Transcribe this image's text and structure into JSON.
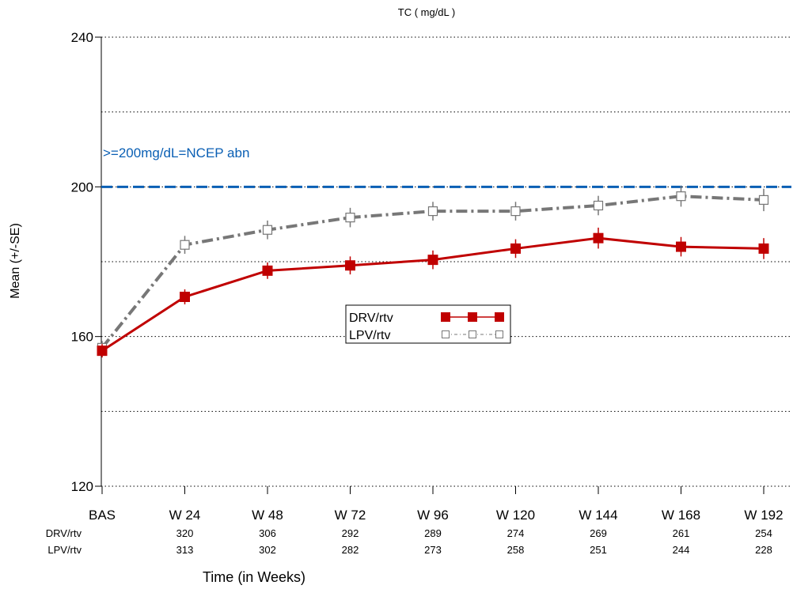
{
  "chart_data": {
    "type": "line",
    "title": "TC ( mg/dL )",
    "xlabel": "Time (in Weeks)",
    "ylabel": "Mean (+/-SE)",
    "ylim": [
      120,
      240
    ],
    "yticks": [
      120,
      160,
      200,
      240
    ],
    "ygrid": [
      120,
      140,
      160,
      180,
      200,
      220,
      240
    ],
    "grid": true,
    "legend_position": "center",
    "categories": [
      "BAS",
      "W 24",
      "W 48",
      "W 72",
      "W 96",
      "W 120",
      "W 144",
      "W 168",
      "W 192"
    ],
    "reference_line": {
      "y": 200,
      "label": ">=200mg/dL=NCEP abn",
      "color": "#0a5fb4"
    },
    "series": [
      {
        "name": "DRV/rtv",
        "color": "#c00000",
        "marker": "filled-square",
        "values": [
          156.2,
          170.6,
          177.6,
          179.0,
          180.5,
          183.5,
          186.3,
          184.0,
          183.5
        ],
        "se": [
          1.8,
          2.0,
          2.2,
          2.4,
          2.5,
          2.5,
          2.8,
          2.6,
          2.8
        ]
      },
      {
        "name": "LPV/rtv",
        "color": "#777777",
        "marker": "open-square",
        "values": [
          157.0,
          184.5,
          188.5,
          191.8,
          193.5,
          193.5,
          195.0,
          197.5,
          196.5
        ],
        "se": [
          1.8,
          2.4,
          2.5,
          2.6,
          2.5,
          2.5,
          2.6,
          2.8,
          3.0
        ]
      }
    ],
    "at_risk": [
      {
        "label": "DRV/rtv",
        "counts": [
          "",
          "320",
          "306",
          "292",
          "289",
          "274",
          "269",
          "261",
          "254"
        ]
      },
      {
        "label": "LPV/rtv",
        "counts": [
          "",
          "313",
          "302",
          "282",
          "273",
          "258",
          "251",
          "244",
          "228"
        ]
      }
    ]
  }
}
